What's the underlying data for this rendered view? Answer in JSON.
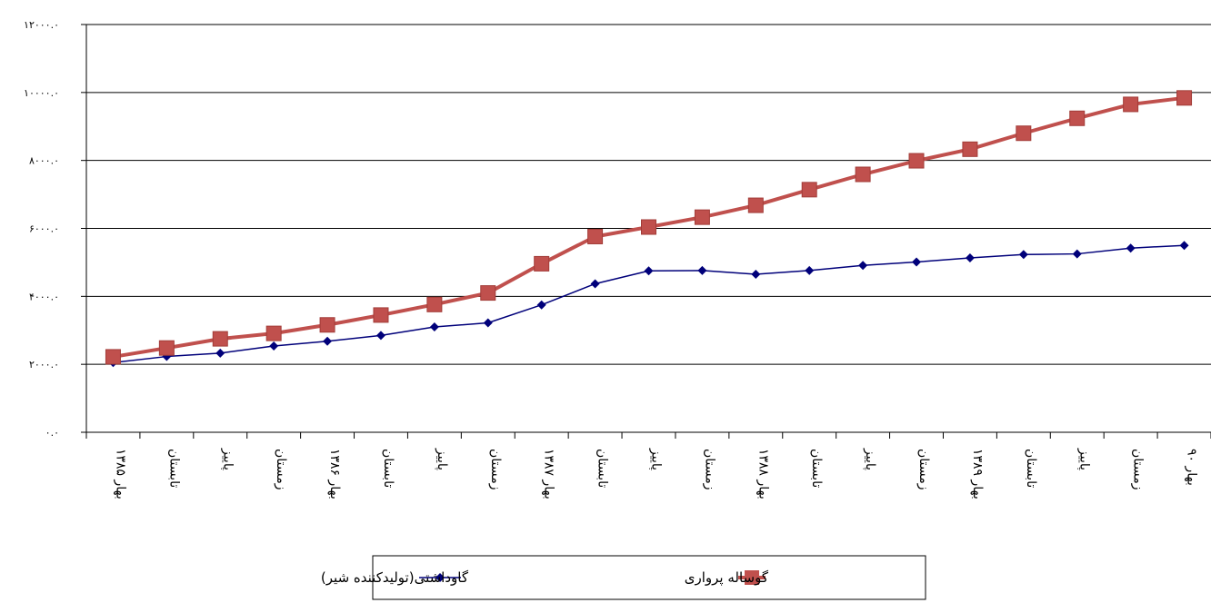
{
  "chart_data": {
    "type": "line",
    "categories": [
      "بهار ۱۳۸۵",
      "تابستان",
      "پاییز",
      "زمستان",
      "بهار ۱۳۸۶",
      "تابستان",
      "پاییز",
      "زمستان",
      "بهار ۱۳۸۷",
      "تابستان",
      "پاییز",
      "زمستان",
      "بهار ۱۳۸۸",
      "تابستان",
      "پاییز",
      "زمستان",
      "بهار ۱۳۸۹",
      "تابستان",
      "پاییز",
      "زمستان",
      "بهار ۹۰"
    ],
    "yticks": [
      "۰.۰",
      "۲۰۰۰.۰",
      "۴۰۰۰.۰",
      "۶۰۰۰.۰",
      "۸۰۰۰.۰",
      "۱۰۰۰۰.۰",
      "۱۲۰۰۰.۰"
    ],
    "ylim": [
      0,
      12000
    ],
    "grid": true,
    "legend": "bottom",
    "series": [
      {
        "name": "گاوداشتی(تولیدکننده شیر)",
        "color": "#00007a",
        "marker": "diamond",
        "values": [
          2050,
          2230,
          2330,
          2540,
          2680,
          2850,
          3100,
          3220,
          3750,
          4370,
          4750,
          4760,
          4650,
          4760,
          4910,
          5010,
          5130,
          5230,
          5250,
          5420,
          5500
        ]
      },
      {
        "name": "گوساله پرواری",
        "color": "#c0504d",
        "marker": "square",
        "values": [
          2220,
          2480,
          2750,
          2910,
          3160,
          3450,
          3760,
          4100,
          4960,
          5760,
          6040,
          6330,
          6680,
          7140,
          7590,
          7990,
          8330,
          8800,
          9240,
          9650,
          9840
        ]
      }
    ]
  }
}
